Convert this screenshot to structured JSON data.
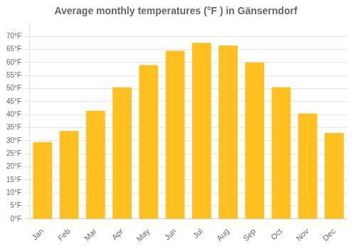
{
  "chart_data": {
    "type": "bar",
    "title": "Average monthly temperatures (°F ) in Gänserndorf",
    "categories": [
      "Jan",
      "Feb",
      "Mar",
      "Apr",
      "May",
      "Jun",
      "Jul",
      "Aug",
      "Sep",
      "Oct",
      "Nov",
      "Dec"
    ],
    "values": [
      29.5,
      33.8,
      41.5,
      50.5,
      59.0,
      64.5,
      67.5,
      66.5,
      60.0,
      50.5,
      40.5,
      33.0
    ],
    "color": "#FFC020",
    "ylim": [
      0,
      75
    ],
    "yticks": [
      {
        "value": 0,
        "label": "0°F"
      },
      {
        "value": 5,
        "label": "5°F"
      },
      {
        "value": 10,
        "label": "10°F"
      },
      {
        "value": 15,
        "label": "15°F"
      },
      {
        "value": 20,
        "label": "20°F"
      },
      {
        "value": 25,
        "label": "25°F"
      },
      {
        "value": 30,
        "label": "30°F"
      },
      {
        "value": 35,
        "label": "35°F"
      },
      {
        "value": 40,
        "label": "40°F"
      },
      {
        "value": 45,
        "label": "45°F"
      },
      {
        "value": 50,
        "label": "50°F"
      },
      {
        "value": 55,
        "label": "55°F"
      },
      {
        "value": 60,
        "label": "60°F"
      },
      {
        "value": 65,
        "label": "65°F"
      },
      {
        "value": 70,
        "label": "70°F"
      }
    ],
    "grid": true
  }
}
